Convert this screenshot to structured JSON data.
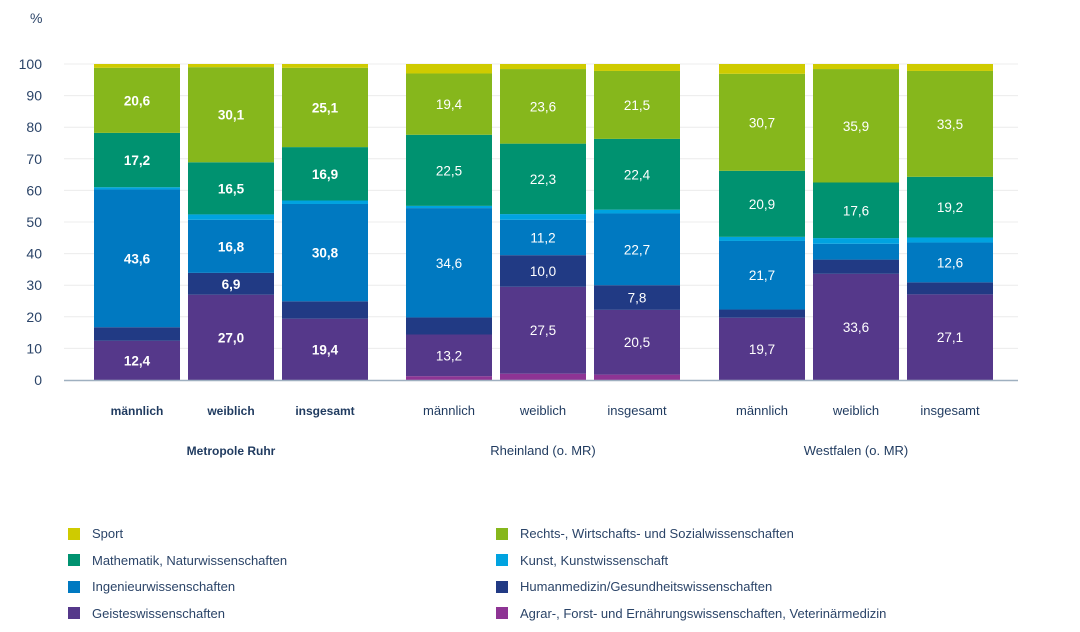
{
  "chart_data": {
    "type": "bar",
    "stacked": true,
    "title": "",
    "ylabel": "%",
    "xlabel": "",
    "ylim": [
      0,
      100
    ],
    "yticks": [
      0,
      10,
      20,
      30,
      40,
      50,
      60,
      70,
      80,
      90,
      100
    ],
    "grid": true,
    "legend_position": "bottom",
    "groups": [
      {
        "name": "Metropole Ruhr",
        "bold": true,
        "categories": [
          "männlich",
          "weiblich",
          "insgesamt"
        ]
      },
      {
        "name": "Rheinland (o. MR)",
        "bold": false,
        "categories": [
          "männlich",
          "weiblich",
          "insgesamt"
        ]
      },
      {
        "name": "Westfalen (o. MR)",
        "bold": false,
        "categories": [
          "männlich",
          "weiblich",
          "insgesamt"
        ]
      }
    ],
    "series": [
      {
        "name": "Agrar-, Forst- und Ernährungswissenschaften, Veterinärmedizin",
        "color": "#8e3494",
        "values": [
          0.0,
          0.0,
          0.0,
          1.2,
          2.0,
          1.7,
          0.0,
          0.0,
          0.0
        ],
        "labels": [
          null,
          null,
          null,
          null,
          null,
          null,
          null,
          null,
          null
        ]
      },
      {
        "name": "Geisteswissenschaften",
        "color": "#55388a",
        "values": [
          12.4,
          27.0,
          19.4,
          13.2,
          27.5,
          20.5,
          19.7,
          33.6,
          27.1
        ],
        "labels": [
          "12,4",
          "27,0",
          "19,4",
          "13,2",
          "27,5",
          "20,5",
          "19,7",
          "33,6",
          "27,1"
        ]
      },
      {
        "name": "Humanmedizin/Gesundheitswissenschaften",
        "color": "#213a84",
        "values": [
          4.3,
          6.9,
          5.5,
          5.4,
          10.0,
          7.8,
          2.6,
          4.5,
          3.8
        ],
        "labels": [
          null,
          "6,9",
          null,
          null,
          "10,0",
          "7,8",
          null,
          null,
          null
        ]
      },
      {
        "name": "Ingenieurwissenschaften",
        "color": "#0079c1",
        "values": [
          43.6,
          16.8,
          30.8,
          34.6,
          11.2,
          22.7,
          21.7,
          5.0,
          12.6
        ],
        "labels": [
          "43,6",
          "16,8",
          "30,8",
          "34,6",
          "11,2",
          "22,7",
          "21,7",
          null,
          "12,6"
        ]
      },
      {
        "name": "Kunst, Kunstwissenschaft",
        "color": "#00a3e0",
        "values": [
          0.7,
          1.7,
          1.1,
          0.7,
          1.8,
          1.2,
          1.3,
          1.8,
          1.6
        ],
        "labels": [
          null,
          null,
          null,
          null,
          null,
          null,
          null,
          null,
          null
        ]
      },
      {
        "name": "Mathematik, Naturwissenschaften",
        "color": "#009270",
        "values": [
          17.2,
          16.5,
          16.9,
          22.5,
          22.3,
          22.4,
          20.9,
          17.6,
          19.2
        ],
        "labels": [
          "17,2",
          "16,5",
          "16,9",
          "22,5",
          "22,3",
          "22,4",
          "20,9",
          "17,6",
          "19,2"
        ]
      },
      {
        "name": "Rechts-, Wirtschafts- und Sozialwissenschaften",
        "color": "#86b71c",
        "values": [
          20.6,
          30.1,
          25.1,
          19.4,
          23.6,
          21.5,
          30.7,
          35.9,
          33.5
        ],
        "labels": [
          "20,6",
          "30,1",
          "25,1",
          "19,4",
          "23,6",
          "21,5",
          "30,7",
          "35,9",
          "33,5"
        ]
      },
      {
        "name": "Sport",
        "color": "#cfcb00",
        "values": [
          1.2,
          1.0,
          1.2,
          3.0,
          1.6,
          2.2,
          3.1,
          1.6,
          2.2
        ],
        "labels": [
          null,
          null,
          null,
          null,
          null,
          null,
          null,
          null,
          null
        ]
      }
    ],
    "legend_order": [
      "Sport",
      "Rechts-, Wirtschafts- und Sozialwissenschaften",
      "Mathematik, Naturwissenschaften",
      "Kunst, Kunstwissenschaft",
      "Ingenieurwissenschaften",
      "Humanmedizin/Gesundheitswissenschaften",
      "Geisteswissenschaften",
      "Agrar-, Forst- und Ernährungswissenschaften, Veterinärmedizin"
    ]
  }
}
